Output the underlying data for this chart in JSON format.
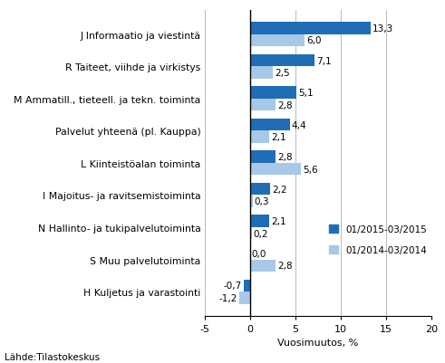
{
  "categories": [
    "H Kuljetus ja varastointi",
    "S Muu palvelutoiminta",
    "N Hallinto- ja tukipalvelutoiminta",
    "I Majoitus- ja ravitsemistoiminta",
    "L Kiinteistöalan toiminta",
    "Palvelut yhteenä (pl. Kauppa)",
    "M Ammatill., tieteell. ja tekn. toiminta",
    "R Taiteet, viihde ja virkistys",
    "J Informaatio ja viestintä"
  ],
  "series1_label": "01/2015-03/2015",
  "series2_label": "01/2014-03/2014",
  "series1_values": [
    -0.7,
    0.0,
    2.1,
    2.2,
    2.8,
    4.4,
    5.1,
    7.1,
    13.3
  ],
  "series2_values": [
    -1.2,
    2.8,
    0.2,
    0.3,
    5.6,
    2.1,
    2.8,
    2.5,
    6.0
  ],
  "series1_color": "#1F6EB5",
  "series2_color": "#A8C8E8",
  "xlim": [
    -5,
    20
  ],
  "xticks": [
    -5,
    0,
    5,
    10,
    15,
    20
  ],
  "xlabel": "Vuosimuutos, %",
  "footer": "Lähde:Tilastokeskus",
  "bar_height": 0.38,
  "background_color": "#ffffff",
  "grid_color": "#b0b0b0"
}
